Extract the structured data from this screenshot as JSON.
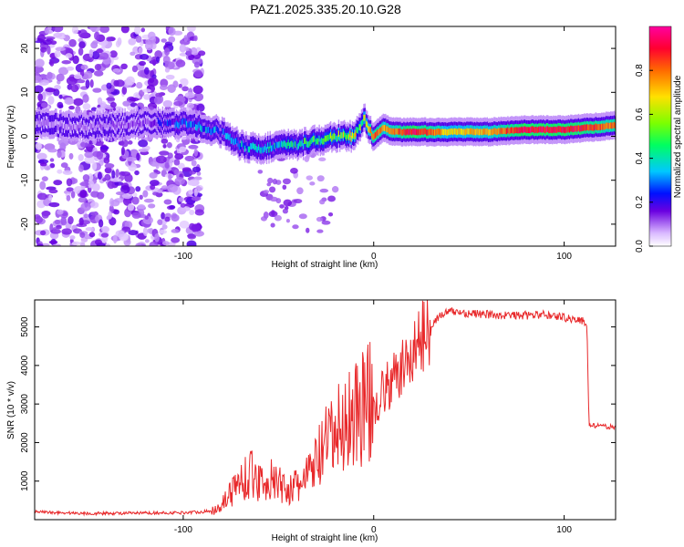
{
  "page_title": "PAZ1.2025.335.20.10.G28",
  "chart_data": [
    {
      "type": "heatmap",
      "title": "PAZ1.2025.335.20.10.G28",
      "xlabel": "Height of straight line (km)",
      "ylabel": "Frequency (Hz)",
      "xlim": [
        -178,
        127
      ],
      "ylim": [
        -25,
        25
      ],
      "x_ticks": [
        -100,
        0,
        100
      ],
      "y_ticks": [
        -20,
        -10,
        0,
        10,
        20
      ],
      "colorbar": {
        "label": "Normalized spectral amplitude",
        "range": [
          0,
          1
        ],
        "ticks": [
          "0.0",
          "0.2",
          "0.4",
          "0.6",
          "0.8"
        ],
        "tick_values": [
          0,
          0.2,
          0.4,
          0.6,
          0.8
        ]
      },
      "ridge": {
        "x": [
          -178,
          -150,
          -120,
          -100,
          -90,
          -80,
          -70,
          -60,
          -50,
          -40,
          -30,
          -20,
          -10,
          -5,
          0,
          5,
          10,
          20,
          40,
          60,
          80,
          100,
          127
        ],
        "freq": [
          3,
          2,
          3,
          3,
          2,
          1,
          -2,
          -3,
          -2,
          -2,
          -1,
          0,
          0,
          4,
          0,
          2,
          1,
          1,
          1,
          1,
          1.5,
          1.5,
          2.5
        ],
        "amplitude": [
          0.1,
          0.1,
          0.15,
          0.3,
          0.35,
          0.3,
          0.35,
          0.4,
          0.4,
          0.45,
          0.5,
          0.55,
          0.7,
          0.6,
          0.85,
          0.75,
          0.8,
          0.95,
          0.7,
          0.75,
          0.95,
          0.95,
          0.8
        ]
      }
    },
    {
      "type": "line",
      "xlabel": "Height of straight line (km)",
      "ylabel": "SNR (10 * v/v)",
      "xlim": [
        -178,
        127
      ],
      "ylim": [
        0,
        5700
      ],
      "x_ticks": [
        -100,
        0,
        100
      ],
      "y_ticks": [
        1000,
        2000,
        3000,
        4000,
        5000
      ],
      "series": [
        {
          "name": "SNR",
          "color": "#e8282a",
          "x": [
            -178,
            -150,
            -120,
            -100,
            -85,
            -80,
            -75,
            -70,
            -65,
            -60,
            -55,
            -50,
            -45,
            -40,
            -35,
            -30,
            -25,
            -20,
            -15,
            -10,
            -5,
            0,
            5,
            10,
            15,
            20,
            25,
            30,
            35,
            40,
            45,
            50,
            60,
            70,
            80,
            90,
            100,
            105,
            110,
            112,
            113,
            120,
            127
          ],
          "y": [
            200,
            160,
            170,
            180,
            220,
            400,
            700,
            1000,
            1200,
            1000,
            1050,
            900,
            800,
            850,
            1100,
            1500,
            1900,
            2200,
            2500,
            2800,
            3000,
            3000,
            3300,
            3600,
            3900,
            4300,
            4700,
            5050,
            5300,
            5400,
            5380,
            5350,
            5320,
            5300,
            5300,
            5320,
            5250,
            5200,
            5150,
            5100,
            2450,
            2420,
            2400
          ]
        }
      ]
    }
  ]
}
